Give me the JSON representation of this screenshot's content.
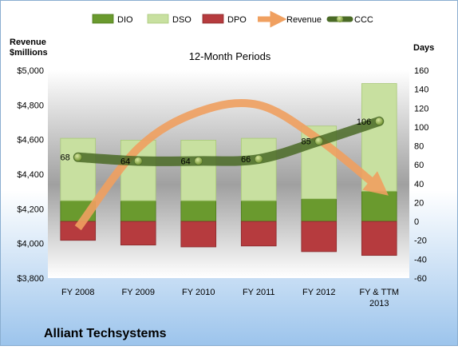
{
  "chart_data": {
    "type": "bar",
    "title": "12-Month Periods",
    "company": "Alliant Techsystems",
    "left_axis_label_line1": "Revenue",
    "left_axis_label_line2": "$millions",
    "right_axis_label": "Days",
    "categories": [
      "FY 2008",
      "FY 2009",
      "FY 2010",
      "FY 2011",
      "FY 2012",
      "FY & TTM 2013"
    ],
    "category_lines": [
      [
        "FY 2008"
      ],
      [
        "FY 2009"
      ],
      [
        "FY 2010"
      ],
      [
        "FY 2011"
      ],
      [
        "FY 2012"
      ],
      [
        "FY & TTM",
        "2013"
      ]
    ],
    "left_axis": {
      "min": 3800,
      "max": 5000,
      "step": 200
    },
    "left_ticks": [
      "$3,800",
      "$4,000",
      "$4,200",
      "$4,400",
      "$4,600",
      "$4,800",
      "$5,000"
    ],
    "right_axis": {
      "min": -60,
      "max": 160,
      "step": 20
    },
    "right_ticks": [
      "-60",
      "-40",
      "-20",
      "0",
      "20",
      "40",
      "60",
      "80",
      "100",
      "120",
      "140",
      "160"
    ],
    "series": [
      {
        "name": "DIO",
        "axis": "right",
        "values": [
          22,
          22,
          22,
          22,
          24,
          32
        ],
        "color": "#6a9a2e"
      },
      {
        "name": "DSO",
        "axis": "right",
        "values": [
          66,
          64,
          64,
          66,
          77,
          114
        ],
        "color": "#c8e0a0"
      },
      {
        "name": "DPO",
        "axis": "right",
        "values": [
          -20,
          -25,
          -27,
          -26,
          -32,
          -36
        ],
        "color": "#b63b3e"
      },
      {
        "name": "Revenue",
        "axis": "left",
        "values": [
          4090,
          4550,
          4760,
          4800,
          4600,
          4320
        ],
        "color": "#f0a060"
      },
      {
        "name": "CCC",
        "axis": "right",
        "values": [
          68,
          64,
          64,
          66,
          85,
          106
        ],
        "color": "#4a6a26"
      }
    ],
    "ccc_labels": [
      "68",
      "64",
      "64",
      "66",
      "85",
      "106"
    ],
    "legend": [
      "DIO",
      "DSO",
      "DPO",
      "Revenue",
      "CCC"
    ],
    "legend_position": "top",
    "grid": false
  }
}
